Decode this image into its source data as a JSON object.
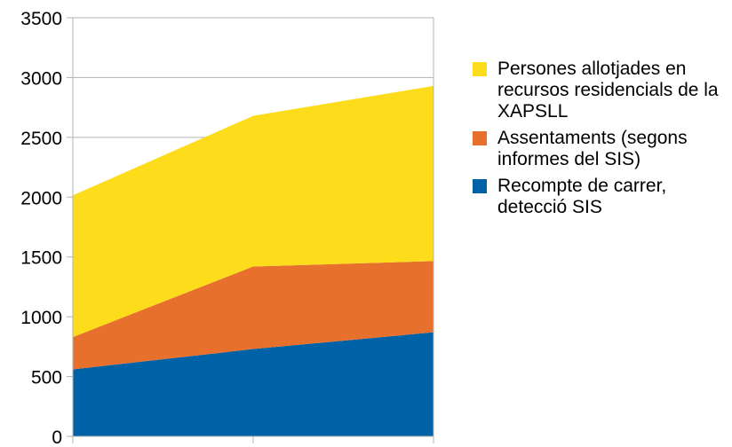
{
  "chart_data": {
    "type": "area",
    "stacked": true,
    "title": "",
    "xlabel": "",
    "ylabel": "",
    "x_points": 3,
    "ylim": [
      0,
      3500
    ],
    "yticks": [
      "0",
      "500",
      "1000",
      "1500",
      "2000",
      "2500",
      "3000",
      "3500"
    ],
    "grid": true,
    "legend_position": "right",
    "series": [
      {
        "name": "Recompte de carrer, detecció SIS",
        "color": "#0062a6",
        "values": [
          560,
          730,
          870
        ]
      },
      {
        "name": "Assentaments (segons informes del SIS)",
        "color": "#e8702d",
        "values": [
          270,
          690,
          595
        ]
      },
      {
        "name": "Persones allotjades en recursos residencials de la XAPSLL",
        "color": "#fddc1c",
        "values": [
          1185,
          1260,
          1465
        ]
      }
    ]
  }
}
